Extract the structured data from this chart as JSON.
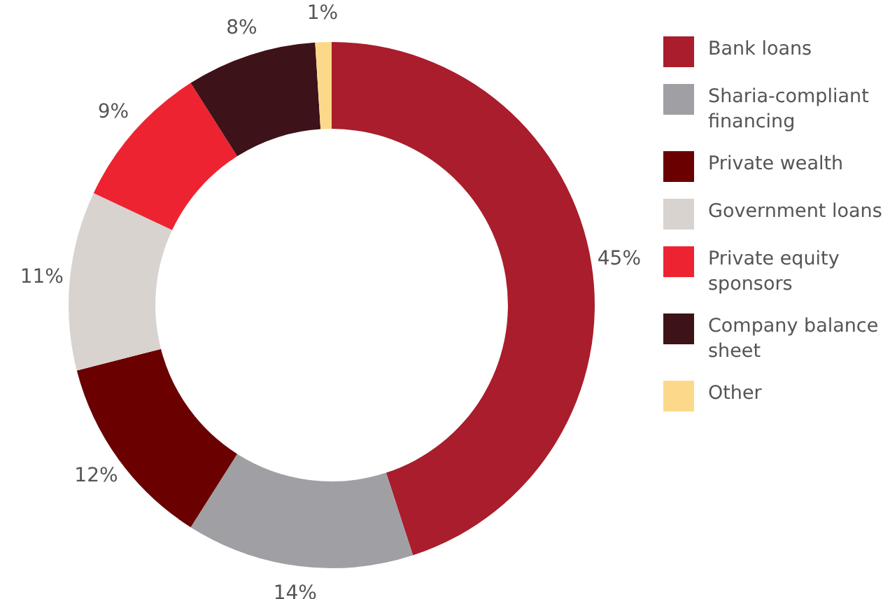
{
  "chart_data": {
    "type": "donut",
    "categories": [
      "Bank loans",
      "Sharia-compliant financing",
      "Private wealth",
      "Government loans",
      "Private equity sponsors",
      "Company balance sheet",
      "Other"
    ],
    "values": [
      45,
      14,
      12,
      11,
      9,
      8,
      1
    ],
    "colors": [
      "#a91d2c",
      "#a0a0a4",
      "#6b0000",
      "#d8d3cf",
      "#ee2331",
      "#3d1218",
      "#fcd98a"
    ],
    "value_labels": [
      "45%",
      "14%",
      "12%",
      "11%",
      "9%",
      "8%",
      "1%"
    ],
    "legend": "right"
  }
}
